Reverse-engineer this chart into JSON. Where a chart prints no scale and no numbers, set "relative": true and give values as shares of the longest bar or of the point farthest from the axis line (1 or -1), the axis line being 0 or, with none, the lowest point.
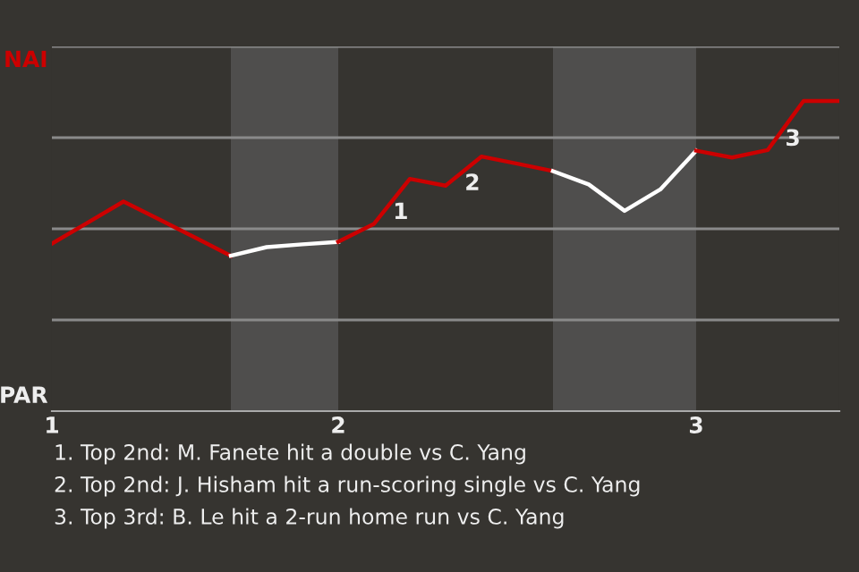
{
  "chart_data": {
    "type": "line",
    "relative": true,
    "categories": [
      "1",
      null,
      null,
      null,
      null,
      null,
      null,
      null,
      "2",
      null,
      null,
      null,
      null,
      null,
      null,
      null,
      null,
      null,
      "3",
      null,
      null,
      null,
      null
    ],
    "grid": "y",
    "marker": "none",
    "line_style": "solid",
    "series": [
      {
        "color": "#cc0000",
        "values": [
          0.54,
          0.608,
          0.676,
          0.618,
          0.56,
          0.501,
          null,
          null,
          null,
          null,
          null,
          null,
          null,
          null,
          null,
          null,
          null,
          null,
          null,
          null,
          null,
          null,
          null
        ]
      },
      {
        "color": "#ffffff",
        "values": [
          null,
          null,
          null,
          null,
          null,
          0.501,
          0.529,
          0.538,
          0.546,
          null,
          null,
          null,
          null,
          null,
          null,
          null,
          null,
          null,
          null,
          null,
          null,
          null,
          null
        ]
      },
      {
        "color": "#cc0000",
        "values": [
          null,
          null,
          null,
          null,
          null,
          null,
          null,
          null,
          0.546,
          0.604,
          0.749,
          0.727,
          0.821,
          0.798,
          0.774,
          null,
          null,
          null,
          null,
          null,
          null,
          null,
          null
        ]
      },
      {
        "color": "#ffffff",
        "values": [
          null,
          null,
          null,
          null,
          null,
          null,
          null,
          null,
          null,
          null,
          null,
          null,
          null,
          null,
          0.774,
          0.731,
          0.646,
          0.715,
          0.84,
          null,
          null,
          null,
          null
        ]
      },
      {
        "color": "#cc0000",
        "values": [
          null,
          null,
          null,
          null,
          null,
          null,
          null,
          null,
          null,
          null,
          null,
          null,
          null,
          null,
          null,
          null,
          null,
          null,
          0.84,
          0.818,
          0.842,
          1,
          1
        ]
      }
    ],
    "annotations": [
      "NAI",
      "PAR",
      "1",
      "2",
      "3",
      "1. Top 2nd: M. Fanete hit a double vs C. Yang",
      "2. Top 2nd: J. Hisham hit a run-scoring single vs C. Yang",
      "3. Top 3rd: B. Le hit a 2-run home run vs C. Yang"
    ]
  }
}
